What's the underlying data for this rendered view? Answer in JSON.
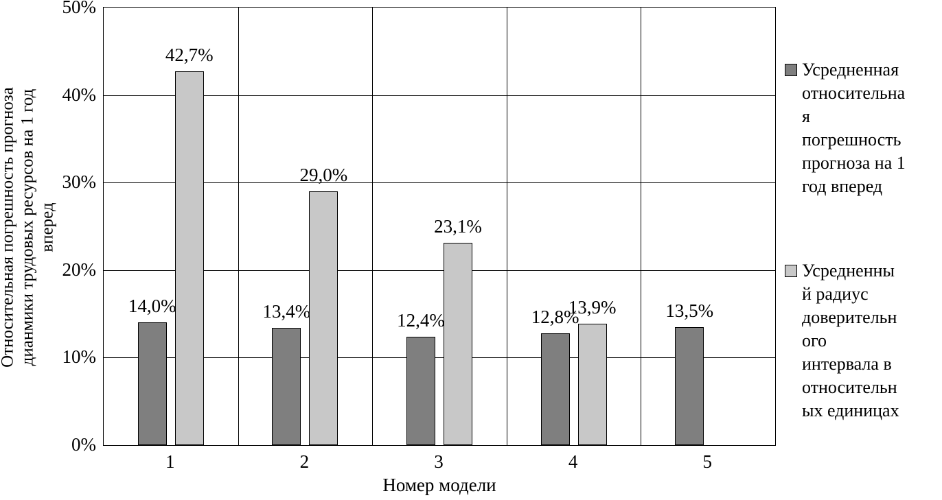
{
  "chart_data": {
    "type": "bar",
    "title": "",
    "xlabel": "Номер модели",
    "ylabel": "Относительная погрешность прогноза дианмики трудовых ресурсов на 1 год вперед",
    "ylabel_display": "Относительная погрешность прогноза\nдианмики трудовых ресурсов на 1 год\nвперед",
    "ylim": [
      0,
      50
    ],
    "grid": true,
    "legend_position": "right",
    "categories": [
      "1",
      "2",
      "3",
      "4",
      "5"
    ],
    "yticks": [
      {
        "value": 0,
        "label": "0%"
      },
      {
        "value": 10,
        "label": "10%"
      },
      {
        "value": 20,
        "label": "20%"
      },
      {
        "value": 30,
        "label": "30%"
      },
      {
        "value": 40,
        "label": "40%"
      },
      {
        "value": 50,
        "label": "50%"
      }
    ],
    "series": [
      {
        "name": "Усредненная относительная погрешность прогноза на 1 год вперед",
        "color": "#7f7f7f",
        "values": [
          14.0,
          13.4,
          12.4,
          12.8,
          13.5
        ],
        "labels": [
          "14,0%",
          "13,4%",
          "12,4%",
          "12,8%",
          "13,5%"
        ]
      },
      {
        "name": "Усредненный радиус доверительного интервала в относительных единицах",
        "color": "#c8c8c8",
        "values": [
          42.7,
          29.0,
          23.1,
          13.9,
          null
        ],
        "labels": [
          "42,7%",
          "29,0%",
          "23,1%",
          "13,9%",
          ""
        ]
      }
    ],
    "legend": {
      "items": [
        {
          "label_display": "Усредненная\nотносительна\nя\nпогрешность\nпрогноза на 1\nгод вперед"
        },
        {
          "label_display": "Усредненны\nй радиус\nдоверительн\nого\nинтервала в\nотносительн\nых единицах"
        }
      ]
    }
  }
}
